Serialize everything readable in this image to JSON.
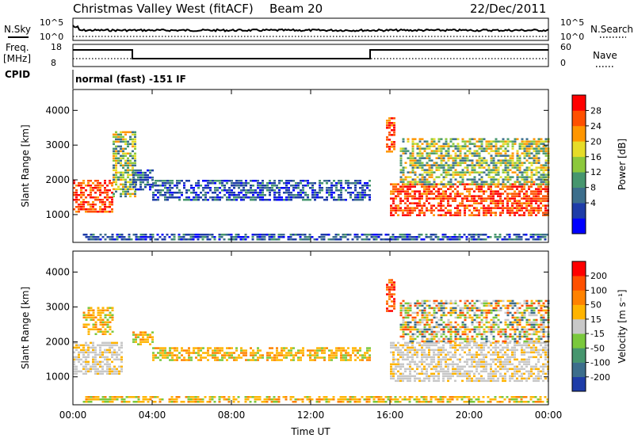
{
  "header": {
    "title": "Christmas Valley West (fitACF)",
    "beam": "Beam 20",
    "date": "22/Dec/2011"
  },
  "strip": {
    "nsky_label": "N.Sky",
    "nsky_ticks": [
      "10^5",
      "10^0"
    ],
    "nsearch_label": "N.Search",
    "nsearch_ticks": [
      "10^5",
      "10^0"
    ],
    "freq_label": "Freq.",
    "freq_unit": "[MHz]",
    "freq_ticks": [
      "18",
      "8"
    ],
    "nave_label": "Nave",
    "nave_ticks": [
      "60",
      "0"
    ],
    "cpid_label": "CPID",
    "cpid_text": "normal (fast) -151 IF"
  },
  "chart_data": [
    {
      "type": "heatmap",
      "name": "power-panel",
      "xlabel": "",
      "ylabel": "Slant Range [km]",
      "x_ticks": [
        "00:00",
        "04:00",
        "08:00",
        "12:00",
        "16:00",
        "20:00",
        "00:00"
      ],
      "xlim": [
        0,
        24
      ],
      "y_ticks": [
        1000,
        2000,
        3000,
        4000
      ],
      "ylim": [
        200,
        4600
      ],
      "colorbar_label": "Power [dB]",
      "colorbar_ticks": [
        "28",
        "24",
        "20",
        "16",
        "12",
        "8",
        "4"
      ],
      "colorbar_colors": [
        "#0000ff",
        "#1e3ca8",
        "#3c6e8c",
        "#46966e",
        "#8cc83c",
        "#e6dc28",
        "#ff9600",
        "#ff5000",
        "#ff0000"
      ],
      "echo_regions": [
        {
          "t0": 0.0,
          "t1": 2.0,
          "r0": 1100,
          "r1": 2000,
          "level": "high"
        },
        {
          "t0": 2.0,
          "t1": 3.2,
          "r0": 1500,
          "r1": 3400,
          "level": "mid"
        },
        {
          "t0": 3.0,
          "t1": 4.0,
          "r0": 1700,
          "r1": 2300,
          "level": "low"
        },
        {
          "t0": 4.0,
          "t1": 15.0,
          "r0": 1400,
          "r1": 2000,
          "level": "low"
        },
        {
          "t0": 0.5,
          "t1": 24.0,
          "r0": 250,
          "r1": 450,
          "level": "low"
        },
        {
          "t0": 15.8,
          "t1": 16.2,
          "r0": 2800,
          "r1": 3800,
          "level": "high"
        },
        {
          "t0": 16.0,
          "t1": 24.0,
          "r0": 1000,
          "r1": 1900,
          "level": "high"
        },
        {
          "t0": 16.5,
          "t1": 24.0,
          "r0": 1900,
          "r1": 3200,
          "level": "mid"
        }
      ]
    },
    {
      "type": "heatmap",
      "name": "velocity-panel",
      "xlabel": "Time UT",
      "ylabel": "Slant Range [km]",
      "x_ticks": [
        "00:00",
        "04:00",
        "08:00",
        "12:00",
        "16:00",
        "20:00",
        "00:00"
      ],
      "xlim": [
        0,
        24
      ],
      "y_ticks": [
        1000,
        2000,
        3000,
        4000
      ],
      "ylim": [
        200,
        4600
      ],
      "colorbar_label": "Velocity [m s⁻¹]",
      "colorbar_ticks": [
        "200",
        "100",
        "50",
        "15",
        "-15",
        "-50",
        "-100",
        "-200"
      ],
      "colorbar_colors": [
        "#1e3ca8",
        "#3c6e8c",
        "#46966e",
        "#7ac83c",
        "#c8c8c8",
        "#ffb400",
        "#ff8200",
        "#ff5000",
        "#ff0000"
      ],
      "echo_regions": [
        {
          "t0": 0.0,
          "t1": 2.5,
          "r0": 1100,
          "r1": 2000,
          "level": "ground"
        },
        {
          "t0": 0.5,
          "t1": 2.0,
          "r0": 2200,
          "r1": 3000,
          "level": "neg"
        },
        {
          "t0": 3.0,
          "t1": 4.0,
          "r0": 1900,
          "r1": 2300,
          "level": "neg"
        },
        {
          "t0": 4.0,
          "t1": 15.0,
          "r0": 1450,
          "r1": 1850,
          "level": "neg"
        },
        {
          "t0": 0.5,
          "t1": 24.0,
          "r0": 250,
          "r1": 450,
          "level": "neg"
        },
        {
          "t0": 15.8,
          "t1": 16.2,
          "r0": 2800,
          "r1": 3800,
          "level": "strongneg"
        },
        {
          "t0": 16.0,
          "t1": 24.0,
          "r0": 900,
          "r1": 2000,
          "level": "ground"
        },
        {
          "t0": 16.5,
          "t1": 24.0,
          "r0": 2000,
          "r1": 3200,
          "level": "mixed"
        }
      ]
    }
  ]
}
